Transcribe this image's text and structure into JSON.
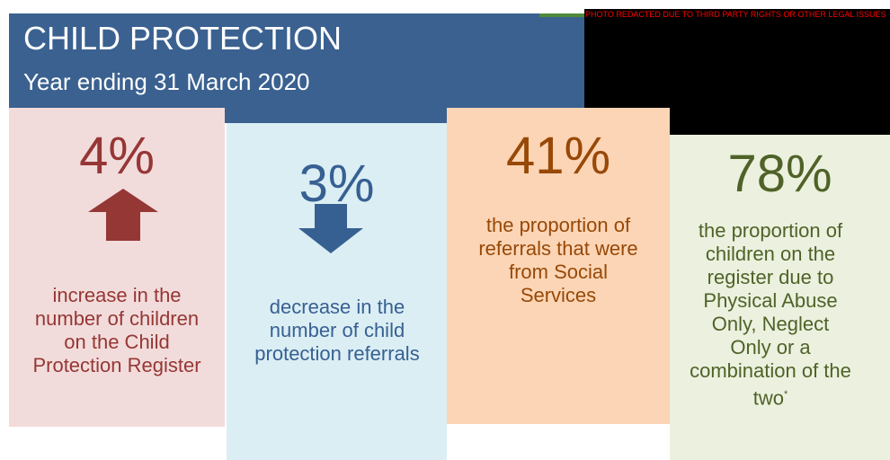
{
  "header": {
    "title": "CHILD PROTECTION",
    "subtitle": "Year ending 31 March 2020"
  },
  "redaction_notice": "PHOTO REDACTED DUE TO THIRD PARTY RIGHTS OR OTHER LEGAL ISSUES",
  "stats": [
    {
      "value": "4%",
      "description": "increase in the number of children on the Child Protection Register"
    },
    {
      "value": "3%",
      "description": "decrease in the number of child protection referrals"
    },
    {
      "value": "41%",
      "description": "the proportion of referrals that were from Social Services"
    },
    {
      "value": "78%",
      "description": "the proportion of children on the register due to Physical Abuse Only, Neglect Only or a combination of the two",
      "footnote_marker": "*"
    }
  ]
}
